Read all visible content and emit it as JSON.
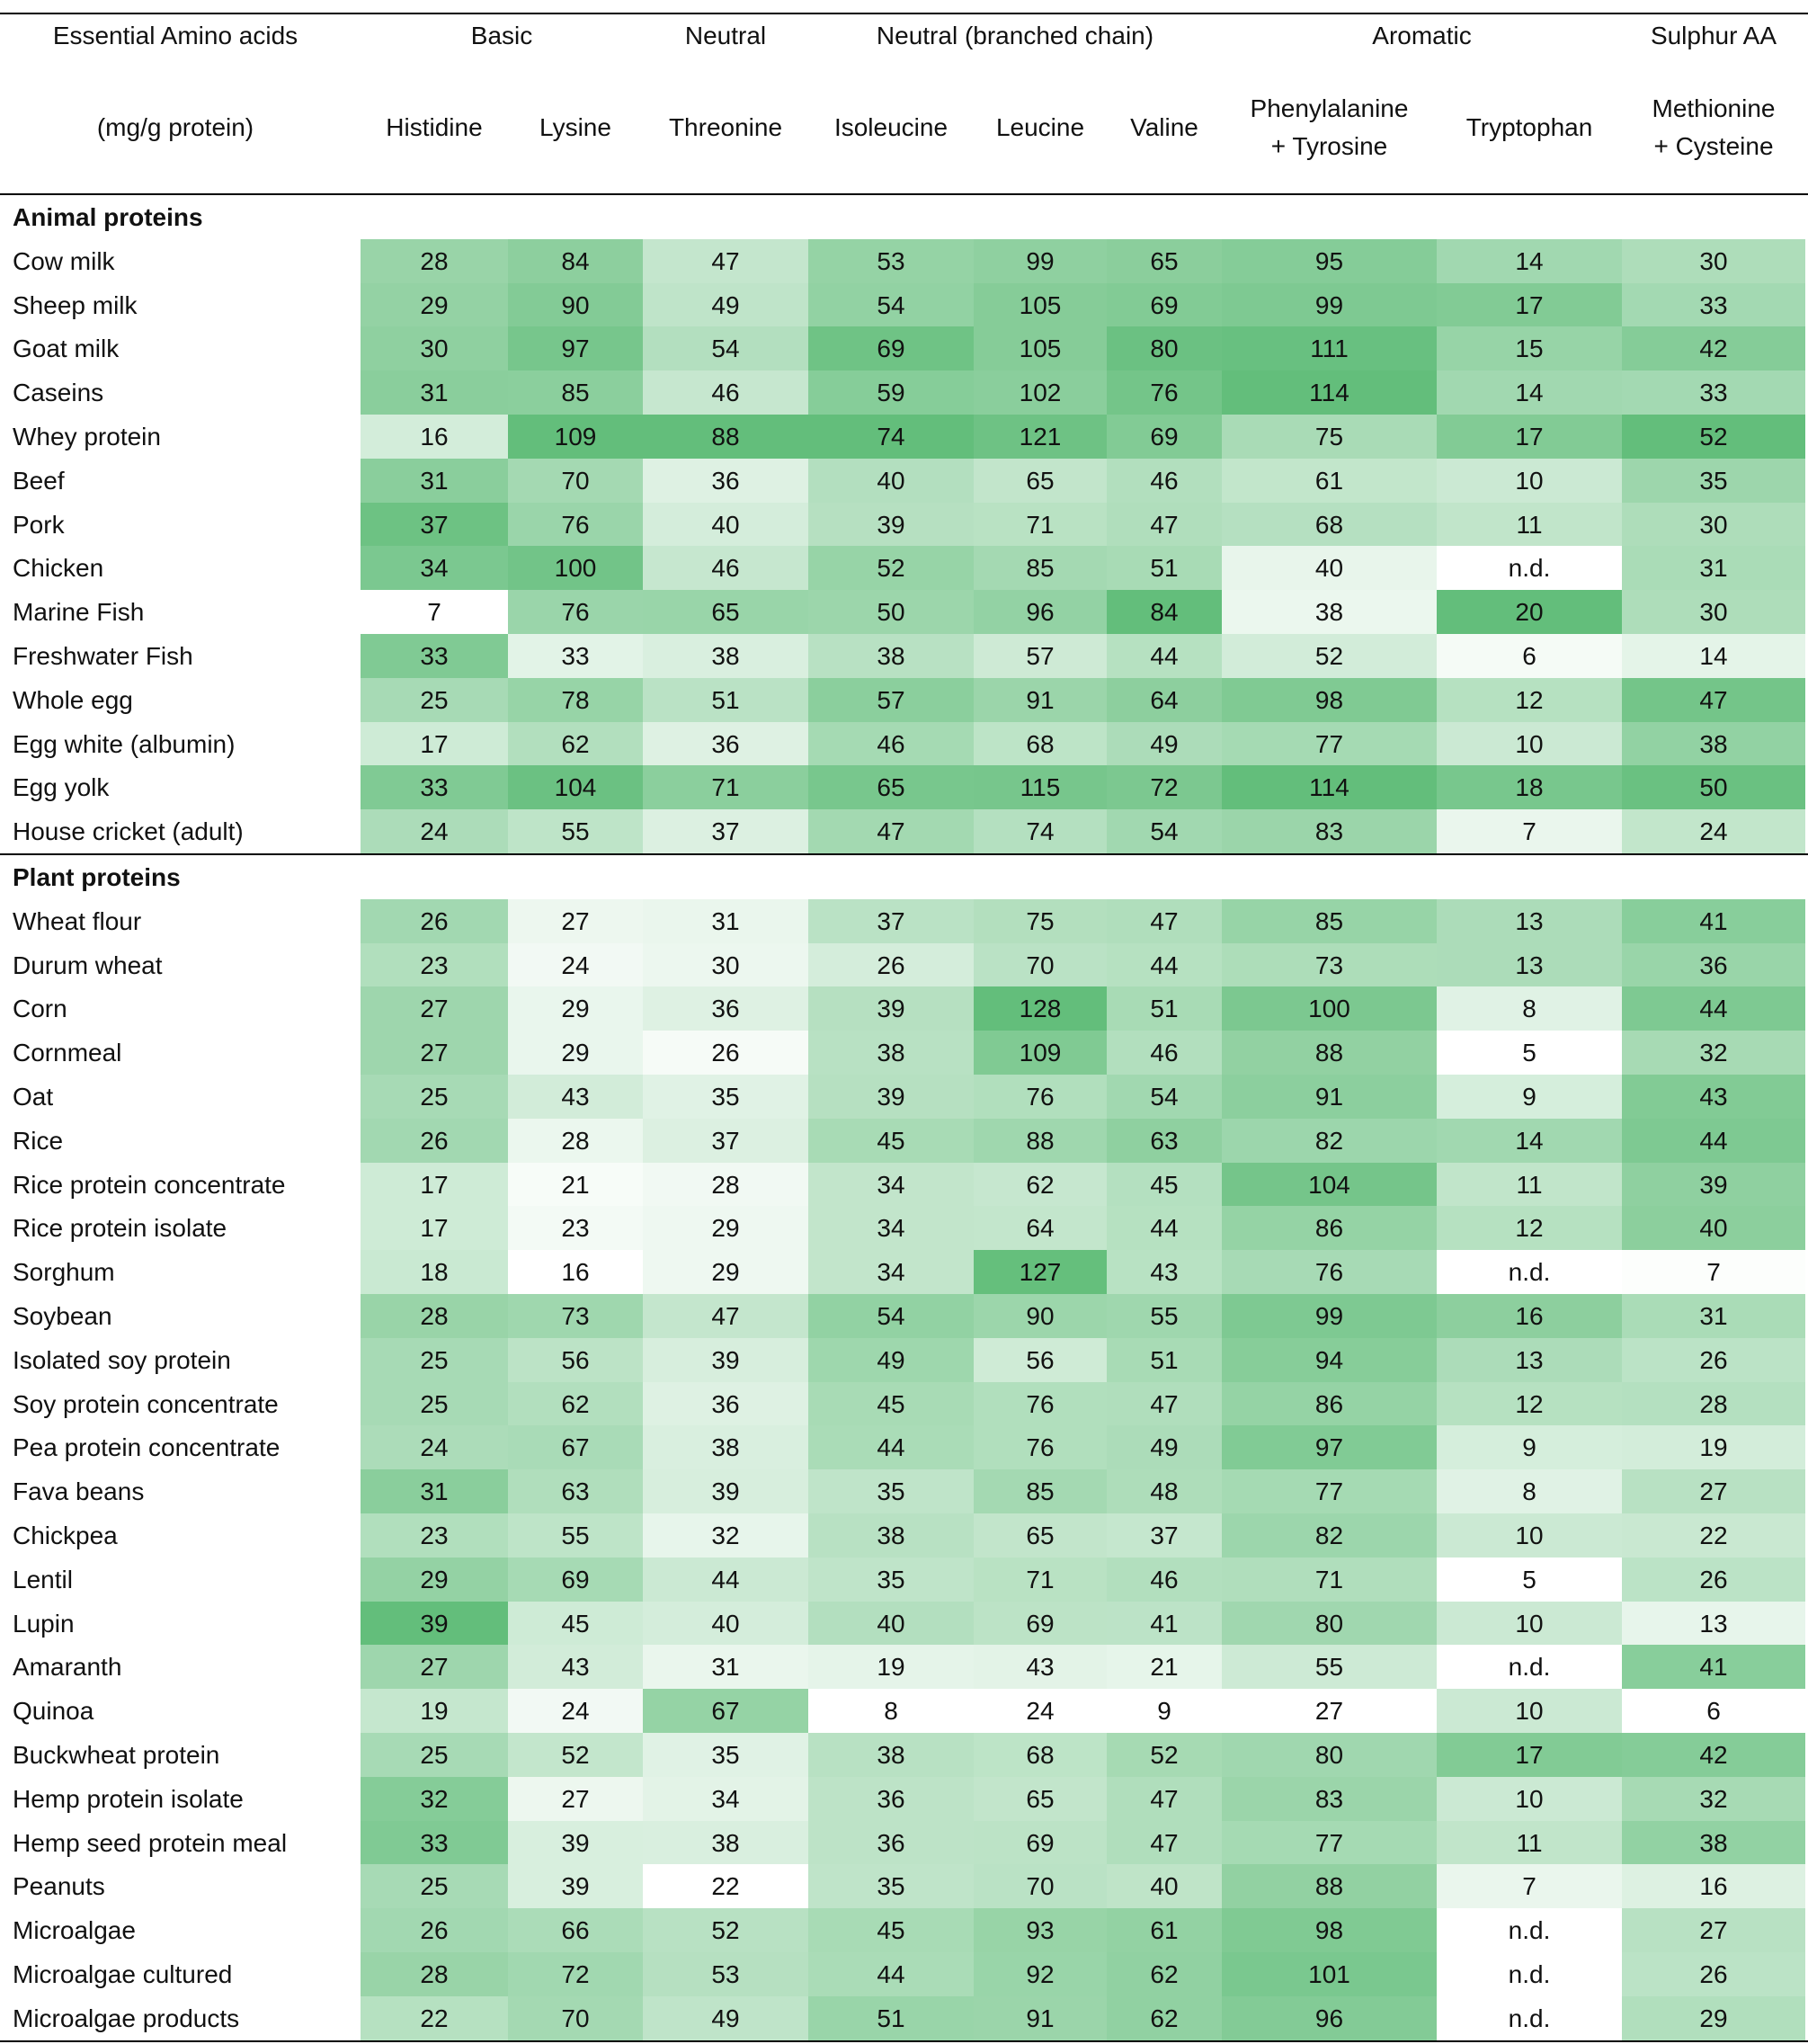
{
  "header": {
    "group_label": "Essential Amino acids",
    "unit_label": "(mg/g protein)",
    "groups": [
      {
        "label": "Basic",
        "span": [
          0,
          1
        ]
      },
      {
        "label": "Neutral",
        "span": [
          2,
          2
        ]
      },
      {
        "label": "Neutral (branched chain)",
        "span": [
          3,
          5
        ]
      },
      {
        "label": "Aromatic",
        "span": [
          6,
          7
        ]
      },
      {
        "label": "Sulphur AA",
        "span": [
          8,
          8
        ]
      }
    ],
    "columns": [
      "Histidine",
      "Lysine",
      "Threonine",
      "Isoleucine",
      "Leucine",
      "Valine",
      "Phenylalanine\n+ Tyrosine",
      "Tryptophan",
      "Methionine\n+ Cysteine"
    ]
  },
  "colors": {
    "low": "#ffffff",
    "high": "#63be7b",
    "not_determined": "#ffffff"
  },
  "sections": [
    {
      "title": "Animal proteins",
      "rows": [
        {
          "name": "Cow milk",
          "values": [
            "28",
            "84",
            "47",
            "53",
            "99",
            "65",
            "95",
            "14",
            "30"
          ]
        },
        {
          "name": "Sheep milk",
          "values": [
            "29",
            "90",
            "49",
            "54",
            "105",
            "69",
            "99",
            "17",
            "33"
          ]
        },
        {
          "name": "Goat milk",
          "values": [
            "30",
            "97",
            "54",
            "69",
            "105",
            "80",
            "111",
            "15",
            "42"
          ]
        },
        {
          "name": "Caseins",
          "values": [
            "31",
            "85",
            "46",
            "59",
            "102",
            "76",
            "114",
            "14",
            "33"
          ]
        },
        {
          "name": "Whey protein",
          "values": [
            "16",
            "109",
            "88",
            "74",
            "121",
            "69",
            "75",
            "17",
            "52"
          ]
        },
        {
          "name": "Beef",
          "values": [
            "31",
            "70",
            "36",
            "40",
            "65",
            "46",
            "61",
            "10",
            "35"
          ]
        },
        {
          "name": "Pork",
          "values": [
            "37",
            "76",
            "40",
            "39",
            "71",
            "47",
            "68",
            "11",
            "30"
          ]
        },
        {
          "name": "Chicken",
          "values": [
            "34",
            "100",
            "46",
            "52",
            "85",
            "51",
            "40",
            "n.d.",
            "31"
          ]
        },
        {
          "name": "Marine Fish",
          "values": [
            "7",
            "76",
            "65",
            "50",
            "96",
            "84",
            "38",
            "20",
            "30"
          ]
        },
        {
          "name": "Freshwater Fish",
          "values": [
            "33",
            "33",
            "38",
            "38",
            "57",
            "44",
            "52",
            "6",
            "14"
          ]
        },
        {
          "name": "Whole egg",
          "values": [
            "25",
            "78",
            "51",
            "57",
            "91",
            "64",
            "98",
            "12",
            "47"
          ]
        },
        {
          "name": "Egg white (albumin)",
          "values": [
            "17",
            "62",
            "36",
            "46",
            "68",
            "49",
            "77",
            "10",
            "38"
          ]
        },
        {
          "name": "Egg yolk",
          "values": [
            "33",
            "104",
            "71",
            "65",
            "115",
            "72",
            "114",
            "18",
            "50"
          ]
        },
        {
          "name": "House cricket (adult)",
          "values": [
            "24",
            "55",
            "37",
            "47",
            "74",
            "54",
            "83",
            "7",
            "24"
          ]
        }
      ]
    },
    {
      "title": "Plant proteins",
      "rows": [
        {
          "name": "Wheat flour",
          "values": [
            "26",
            "27",
            "31",
            "37",
            "75",
            "47",
            "85",
            "13",
            "41"
          ]
        },
        {
          "name": "Durum wheat",
          "values": [
            "23",
            "24",
            "30",
            "26",
            "70",
            "44",
            "73",
            "13",
            "36"
          ]
        },
        {
          "name": "Corn",
          "values": [
            "27",
            "29",
            "36",
            "39",
            "128",
            "51",
            "100",
            "8",
            "44"
          ]
        },
        {
          "name": "Cornmeal",
          "values": [
            "27",
            "29",
            "26",
            "38",
            "109",
            "46",
            "88",
            "5",
            "32"
          ]
        },
        {
          "name": "Oat",
          "values": [
            "25",
            "43",
            "35",
            "39",
            "76",
            "54",
            "91",
            "9",
            "43"
          ]
        },
        {
          "name": "Rice",
          "values": [
            "26",
            "28",
            "37",
            "45",
            "88",
            "63",
            "82",
            "14",
            "44"
          ]
        },
        {
          "name": "Rice protein concentrate",
          "values": [
            "17",
            "21",
            "28",
            "34",
            "62",
            "45",
            "104",
            "11",
            "39"
          ]
        },
        {
          "name": "Rice protein isolate",
          "values": [
            "17",
            "23",
            "29",
            "34",
            "64",
            "44",
            "86",
            "12",
            "40"
          ]
        },
        {
          "name": "Sorghum",
          "values": [
            "18",
            "16",
            "29",
            "34",
            "127",
            "43",
            "76",
            "n.d.",
            "7"
          ]
        },
        {
          "name": "Soybean",
          "values": [
            "28",
            "73",
            "47",
            "54",
            "90",
            "55",
            "99",
            "16",
            "31"
          ]
        },
        {
          "name": "Isolated soy protein",
          "values": [
            "25",
            "56",
            "39",
            "49",
            "56",
            "51",
            "94",
            "13",
            "26"
          ]
        },
        {
          "name": "Soy protein concentrate",
          "values": [
            "25",
            "62",
            "36",
            "45",
            "76",
            "47",
            "86",
            "12",
            "28"
          ]
        },
        {
          "name": "Pea protein concentrate",
          "values": [
            "24",
            "67",
            "38",
            "44",
            "76",
            "49",
            "97",
            "9",
            "19"
          ]
        },
        {
          "name": "Fava beans",
          "values": [
            "31",
            "63",
            "39",
            "35",
            "85",
            "48",
            "77",
            "8",
            "27"
          ]
        },
        {
          "name": "Chickpea",
          "values": [
            "23",
            "55",
            "32",
            "38",
            "65",
            "37",
            "82",
            "10",
            "22"
          ]
        },
        {
          "name": "Lentil",
          "values": [
            "29",
            "69",
            "44",
            "35",
            "71",
            "46",
            "71",
            "5",
            "26"
          ]
        },
        {
          "name": "Lupin",
          "values": [
            "39",
            "45",
            "40",
            "40",
            "69",
            "41",
            "80",
            "10",
            "13"
          ]
        },
        {
          "name": "Amaranth",
          "values": [
            "27",
            "43",
            "31",
            "19",
            "43",
            "21",
            "55",
            "n.d.",
            "41"
          ]
        },
        {
          "name": "Quinoa",
          "values": [
            "19",
            "24",
            "67",
            "8",
            "24",
            "9",
            "27",
            "10",
            "6"
          ]
        },
        {
          "name": "Buckwheat protein",
          "values": [
            "25",
            "52",
            "35",
            "38",
            "68",
            "52",
            "80",
            "17",
            "42"
          ]
        },
        {
          "name": "Hemp protein isolate",
          "values": [
            "32",
            "27",
            "34",
            "36",
            "65",
            "47",
            "83",
            "10",
            "32"
          ]
        },
        {
          "name": "Hemp seed protein meal",
          "values": [
            "33",
            "39",
            "38",
            "36",
            "69",
            "47",
            "77",
            "11",
            "38"
          ]
        },
        {
          "name": "Peanuts",
          "values": [
            "25",
            "39",
            "22",
            "35",
            "70",
            "40",
            "88",
            "7",
            "16"
          ]
        },
        {
          "name": "Microalgae",
          "values": [
            "26",
            "66",
            "52",
            "45",
            "93",
            "61",
            "98",
            "n.d.",
            "27"
          ]
        },
        {
          "name": "Microalgae cultured",
          "values": [
            "28",
            "72",
            "53",
            "44",
            "92",
            "62",
            "101",
            "n.d.",
            "26"
          ]
        },
        {
          "name": "Microalgae products",
          "values": [
            "22",
            "70",
            "49",
            "51",
            "91",
            "62",
            "96",
            "n.d.",
            "29"
          ]
        }
      ]
    }
  ]
}
